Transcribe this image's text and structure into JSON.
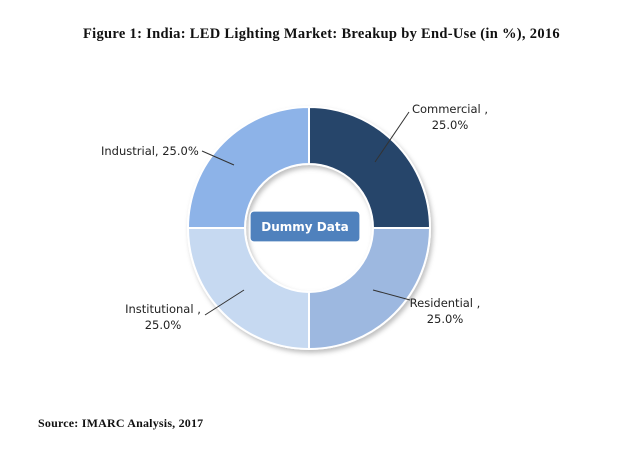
{
  "title": "Figure 1: India: LED Lighting Market: Breakup by End-Use (in %), 2016",
  "source": "Source: IMARC Analysis, 2017",
  "watermark": "Dummy Data",
  "colors": {
    "commercial": "#27446a",
    "residential": "#9db8e0",
    "institutional": "#c6d9f1",
    "industrial": "#8db3e8",
    "badge": "#4f81bd"
  },
  "chart_data": {
    "type": "pie",
    "style": "donut",
    "title": "Figure 1: India: LED Lighting Market: Breakup by End-Use (in %), 2016",
    "categories": [
      "Commercial",
      "Residential",
      "Institutional",
      "Industrial"
    ],
    "values": [
      25.0,
      25.0,
      25.0,
      25.0
    ],
    "labels": [
      {
        "line1": "Commercial ,",
        "line2": "25.0%"
      },
      {
        "line1": "Residential ,",
        "line2": "25.0%"
      },
      {
        "line1": "Institutional  ,",
        "line2": "25.0%"
      },
      {
        "line1": "Industrial, 25.0%",
        "line2": ""
      }
    ],
    "unit": "%",
    "legend": "none"
  }
}
